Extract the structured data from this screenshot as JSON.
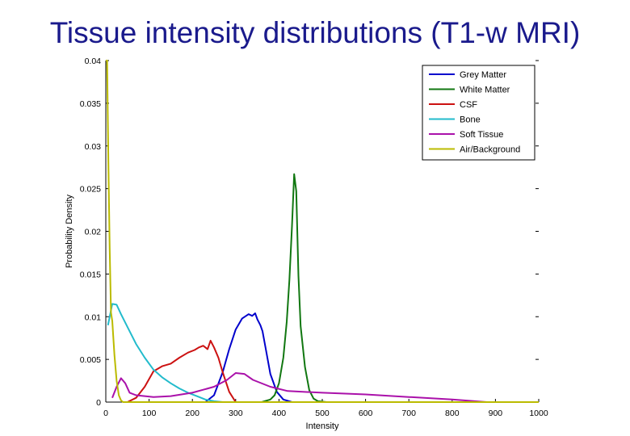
{
  "slide_title": "Tissue intensity distributions (T1-w MRI)",
  "chart_data": {
    "type": "line",
    "title": "Tissue intensity distributions (T1-w MRI)",
    "xlabel": "Intensity",
    "ylabel": "Probability Density",
    "xlim": [
      0,
      1000
    ],
    "ylim": [
      0,
      0.04
    ],
    "x_ticks": [
      0,
      100,
      200,
      300,
      400,
      500,
      600,
      700,
      800,
      900,
      1000
    ],
    "x_tick_labels": [
      "0",
      "100",
      "200",
      "300",
      "400",
      "500",
      "600",
      "700",
      "800",
      "900",
      "1000"
    ],
    "y_ticks": [
      0,
      0.005,
      0.01,
      0.015,
      0.02,
      0.025,
      0.03,
      0.035,
      0.04
    ],
    "y_tick_labels": [
      "0",
      "0.005",
      "0.01",
      "0.015",
      "0.02",
      "0.025",
      "0.03",
      "0.035",
      "0.04"
    ],
    "grid": false,
    "legend_position": "top-right",
    "series": [
      {
        "name": "Grey Matter",
        "color": "#0000cc",
        "x": [
          230,
          250,
          270,
          285,
          300,
          315,
          330,
          338,
          345,
          350,
          357,
          362,
          370,
          380,
          395,
          410,
          430
        ],
        "y": [
          0,
          0.0008,
          0.0035,
          0.0062,
          0.0085,
          0.0098,
          0.0103,
          0.0101,
          0.0104,
          0.0097,
          0.009,
          0.0083,
          0.0061,
          0.0033,
          0.0012,
          0.0003,
          0
        ]
      },
      {
        "name": "White Matter",
        "color": "#117711",
        "x": [
          360,
          380,
          390,
          400,
          410,
          418,
          424,
          430,
          435,
          440,
          445,
          450,
          460,
          470,
          480,
          490,
          510
        ],
        "y": [
          0,
          0.0003,
          0.0008,
          0.0022,
          0.0052,
          0.0094,
          0.0143,
          0.0206,
          0.0267,
          0.0247,
          0.0148,
          0.0089,
          0.0041,
          0.0014,
          0.0004,
          0.0001,
          0
        ]
      },
      {
        "name": "CSF",
        "color": "#cc1111",
        "x": [
          50,
          70,
          90,
          110,
          130,
          150,
          170,
          190,
          205,
          215,
          225,
          235,
          242,
          250,
          260,
          270,
          285,
          300
        ],
        "y": [
          0,
          0.0005,
          0.0018,
          0.0036,
          0.0042,
          0.0045,
          0.0052,
          0.0058,
          0.0061,
          0.0064,
          0.0066,
          0.0062,
          0.0072,
          0.0064,
          0.0052,
          0.0035,
          0.0012,
          0
        ]
      },
      {
        "name": "Bone",
        "color": "#22bbcc",
        "x": [
          5,
          15,
          25,
          35,
          50,
          70,
          90,
          110,
          130,
          150,
          170,
          190,
          210,
          230,
          250,
          270
        ],
        "y": [
          0.009,
          0.0115,
          0.0114,
          0.0103,
          0.0088,
          0.0068,
          0.0052,
          0.0038,
          0.0029,
          0.0022,
          0.0016,
          0.0011,
          0.0007,
          0.0003,
          0.0001,
          0
        ]
      },
      {
        "name": "Soft Tissue",
        "color": "#aa11aa",
        "x": [
          15,
          25,
          35,
          45,
          55,
          70,
          90,
          110,
          150,
          200,
          250,
          280,
          300,
          320,
          340,
          380,
          420,
          500,
          600,
          700,
          800,
          880
        ],
        "y": [
          0.0005,
          0.0018,
          0.0028,
          0.0022,
          0.0011,
          0.0008,
          0.0007,
          0.0006,
          0.0007,
          0.0011,
          0.0018,
          0.0026,
          0.0034,
          0.0033,
          0.0026,
          0.0018,
          0.0013,
          0.0011,
          0.0009,
          0.0006,
          0.0003,
          0
        ]
      },
      {
        "name": "Air/Background",
        "color": "#bbbb00",
        "x": [
          0,
          3,
          6,
          9,
          12,
          15,
          20,
          25,
          30,
          35,
          40,
          1000
        ],
        "y": [
          0.04,
          0.04,
          0.028,
          0.018,
          0.0105,
          0.0095,
          0.0055,
          0.0025,
          0.0008,
          0.0002,
          0,
          0
        ]
      }
    ]
  }
}
